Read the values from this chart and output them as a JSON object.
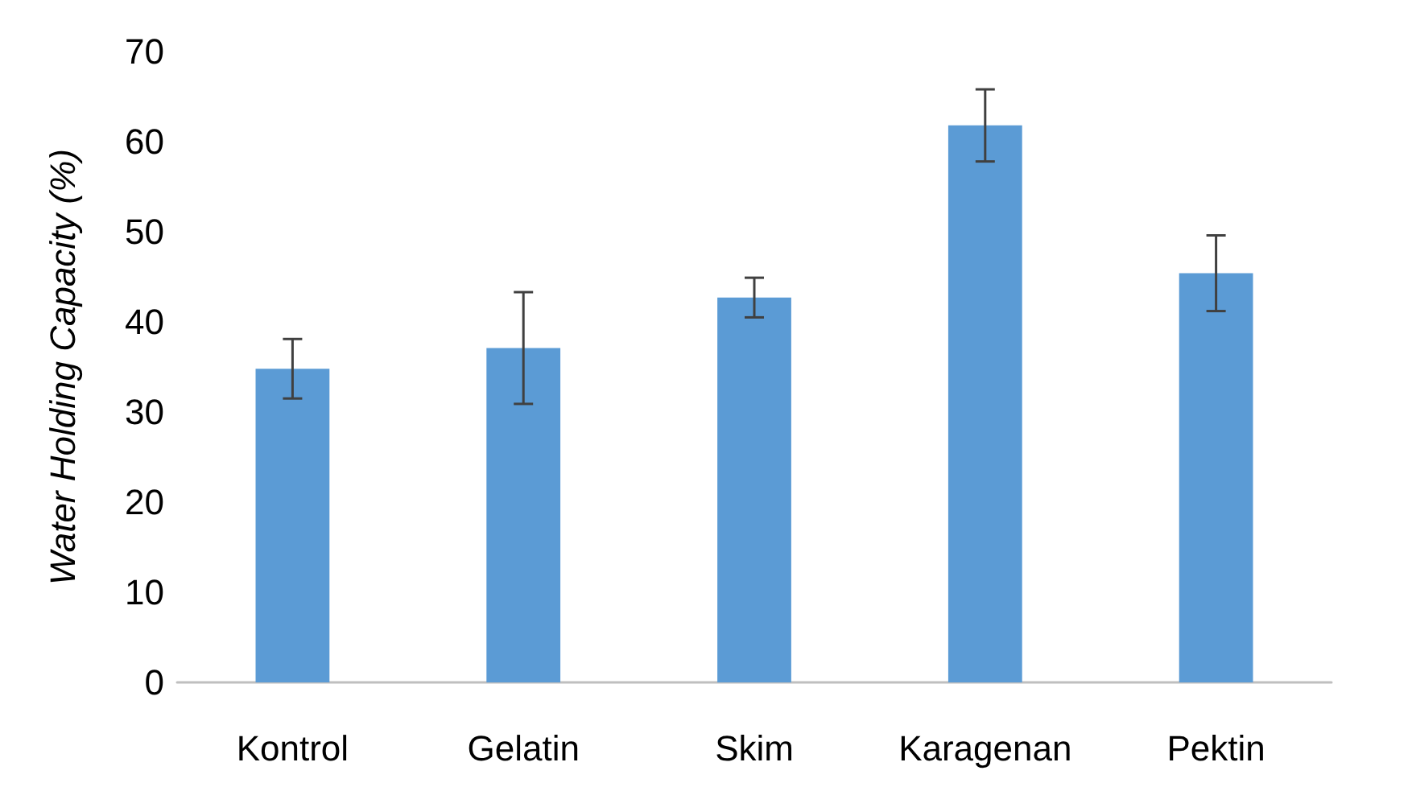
{
  "chart_data": {
    "type": "bar",
    "ylabel": "Water Holding Capacity (%)",
    "categories": [
      "Kontrol",
      "Gelatin",
      "Skim",
      "Karagenan",
      "Pektin"
    ],
    "values": [
      34.8,
      37.1,
      42.7,
      61.8,
      45.4
    ],
    "errors": [
      3.3,
      6.2,
      2.2,
      4.0,
      4.2
    ],
    "color": "#5b9bd5",
    "ylim": [
      0,
      70
    ],
    "yticks": [
      0,
      10,
      20,
      30,
      40,
      50,
      60,
      70
    ],
    "grid": false
  }
}
